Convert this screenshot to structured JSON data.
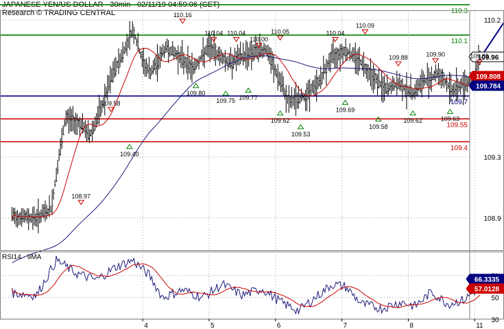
{
  "header": {
    "title": "JAPANESE YEN/US DOLLAR - 30min - 02/11/19 04:59:06 (CET)",
    "source": "Research © TRADING CENTRAL"
  },
  "colors": {
    "price": "#000000",
    "ma_fast": "#cc0000",
    "ma_slow": "#1a1a7a",
    "resistance": "#008000",
    "pivot": "#000080",
    "support": "#cc0000",
    "arrow": "#000080",
    "grid": "#9a9a9a"
  },
  "chart_data": [
    {
      "type": "line",
      "panel": "price",
      "y_ticks": [
        "110.2",
        "109.3",
        "108.9"
      ],
      "ylim": [
        108.76,
        110.31
      ],
      "x_ticks": [
        "4",
        "5",
        "6",
        "7",
        "8",
        "11"
      ],
      "levels": [
        {
          "label": "110.3",
          "value": 110.3,
          "role": "resistance"
        },
        {
          "label": "110.1",
          "value": 110.1,
          "role": "resistance"
        },
        {
          "label": "109.7",
          "value": 109.7,
          "role": "pivot"
        },
        {
          "label": "109.55",
          "value": 109.55,
          "role": "support"
        },
        {
          "label": "109.4",
          "value": 109.4,
          "role": "support"
        }
      ],
      "current_labels": [
        {
          "label": "109.96",
          "value": 109.96,
          "style": "box-white"
        },
        {
          "label": "109.808",
          "value": 109.808,
          "style": "box-red"
        },
        {
          "label": "109.784",
          "value": 109.784,
          "style": "box-navy"
        }
      ],
      "peaks": [
        {
          "label": "108.97",
          "value": 108.97,
          "day": 3.07
        },
        {
          "label": "109.58",
          "value": 109.58,
          "day": 3.52
        },
        {
          "label": "110.16",
          "value": 110.16,
          "day": 4.6
        },
        {
          "label": "110.04",
          "value": 110.04,
          "day": 5.07
        },
        {
          "label": "110.04",
          "value": 110.04,
          "day": 5.41
        },
        {
          "label": "110.00",
          "value": 110.0,
          "day": 5.75
        },
        {
          "label": "110.05",
          "value": 110.05,
          "day": 6.07
        },
        {
          "label": "110.04",
          "value": 110.04,
          "day": 6.9
        },
        {
          "label": "110.09",
          "value": 110.09,
          "day": 7.35
        },
        {
          "label": "109.88",
          "value": 109.88,
          "day": 7.85
        },
        {
          "label": "109.90",
          "value": 109.9,
          "day": 8.41
        },
        {
          "label": "109.89",
          "value": 109.89,
          "day": 9.07
        }
      ],
      "troughs": [
        {
          "label": "109.40",
          "value": 109.4,
          "day": 3.8
        },
        {
          "label": "109.80",
          "value": 109.8,
          "day": 4.8
        },
        {
          "label": "109.75",
          "value": 109.75,
          "day": 5.25
        },
        {
          "label": "109.77",
          "value": 109.77,
          "day": 5.59
        },
        {
          "label": "109.62",
          "value": 109.62,
          "day": 6.07
        },
        {
          "label": "109.53",
          "value": 109.53,
          "day": 6.38
        },
        {
          "label": "109.69",
          "value": 109.69,
          "day": 7.05
        },
        {
          "label": "109.58",
          "value": 109.58,
          "day": 7.55
        },
        {
          "label": "109.62",
          "value": 109.62,
          "day": 8.07
        },
        {
          "label": "109.63",
          "value": 109.63,
          "day": 8.63
        }
      ],
      "path_points": [
        {
          "day": 2.05,
          "value": 108.91
        },
        {
          "day": 2.4,
          "value": 108.9
        },
        {
          "day": 2.62,
          "value": 108.96
        },
        {
          "day": 2.72,
          "value": 109.25
        },
        {
          "day": 2.84,
          "value": 109.56
        },
        {
          "day": 3.05,
          "value": 109.52
        },
        {
          "day": 3.2,
          "value": 109.44
        },
        {
          "day": 3.38,
          "value": 109.62
        },
        {
          "day": 3.55,
          "value": 109.85
        },
        {
          "day": 3.72,
          "value": 110.0
        },
        {
          "day": 3.85,
          "value": 110.14
        },
        {
          "day": 4.0,
          "value": 109.92
        },
        {
          "day": 4.12,
          "value": 109.85
        },
        {
          "day": 4.35,
          "value": 110.02
        },
        {
          "day": 4.55,
          "value": 109.96
        },
        {
          "day": 4.75,
          "value": 109.88
        },
        {
          "day": 5.0,
          "value": 110.02
        },
        {
          "day": 5.3,
          "value": 109.92
        },
        {
          "day": 5.6,
          "value": 109.98
        },
        {
          "day": 5.85,
          "value": 110.01
        },
        {
          "day": 6.0,
          "value": 109.86
        },
        {
          "day": 6.2,
          "value": 109.66
        },
        {
          "day": 6.45,
          "value": 109.7
        },
        {
          "day": 6.65,
          "value": 109.79
        },
        {
          "day": 6.85,
          "value": 109.96
        },
        {
          "day": 7.05,
          "value": 110.0
        },
        {
          "day": 7.25,
          "value": 109.94
        },
        {
          "day": 7.45,
          "value": 109.84
        },
        {
          "day": 7.65,
          "value": 109.74
        },
        {
          "day": 7.85,
          "value": 109.78
        },
        {
          "day": 8.05,
          "value": 109.72
        },
        {
          "day": 8.25,
          "value": 109.8
        },
        {
          "day": 8.45,
          "value": 109.85
        },
        {
          "day": 8.65,
          "value": 109.74
        },
        {
          "day": 8.85,
          "value": 109.78
        },
        {
          "day": 9.0,
          "value": 109.83
        },
        {
          "day": 9.06,
          "value": 109.95
        }
      ],
      "target_arrow": {
        "from": {
          "day": 9.1,
          "value": 109.96
        },
        "to": {
          "day": 9.65,
          "value": 110.32
        }
      }
    },
    {
      "type": "line",
      "panel": "rsi",
      "title": "RSI14 - 9MA",
      "y_ticks": [
        "70",
        "50",
        "30"
      ],
      "ylim": [
        25,
        95
      ],
      "x_ticks": [
        "4",
        "5",
        "6",
        "7",
        "8",
        "11"
      ],
      "current_labels": [
        {
          "label": "66.3335",
          "value": 66.3335,
          "style": "box-navy"
        },
        {
          "label": "57.0128",
          "value": 57.0128,
          "style": "box-red"
        }
      ],
      "path_points": [
        {
          "day": 2.05,
          "value": 54
        },
        {
          "day": 2.4,
          "value": 52
        },
        {
          "day": 2.7,
          "value": 84
        },
        {
          "day": 3.0,
          "value": 72
        },
        {
          "day": 3.3,
          "value": 66
        },
        {
          "day": 3.6,
          "value": 78
        },
        {
          "day": 3.85,
          "value": 84
        },
        {
          "day": 4.1,
          "value": 70
        },
        {
          "day": 4.3,
          "value": 50
        },
        {
          "day": 4.6,
          "value": 57
        },
        {
          "day": 4.9,
          "value": 50
        },
        {
          "day": 5.2,
          "value": 62
        },
        {
          "day": 5.5,
          "value": 52
        },
        {
          "day": 5.8,
          "value": 58
        },
        {
          "day": 6.1,
          "value": 45
        },
        {
          "day": 6.35,
          "value": 38
        },
        {
          "day": 6.6,
          "value": 50
        },
        {
          "day": 6.85,
          "value": 62
        },
        {
          "day": 7.05,
          "value": 60
        },
        {
          "day": 7.3,
          "value": 44
        },
        {
          "day": 7.6,
          "value": 40
        },
        {
          "day": 7.9,
          "value": 46
        },
        {
          "day": 8.1,
          "value": 42
        },
        {
          "day": 8.35,
          "value": 55
        },
        {
          "day": 8.6,
          "value": 44
        },
        {
          "day": 8.85,
          "value": 48
        },
        {
          "day": 9.0,
          "value": 56
        },
        {
          "day": 9.08,
          "value": 66
        }
      ],
      "ma_lag_days": 0.25
    }
  ]
}
